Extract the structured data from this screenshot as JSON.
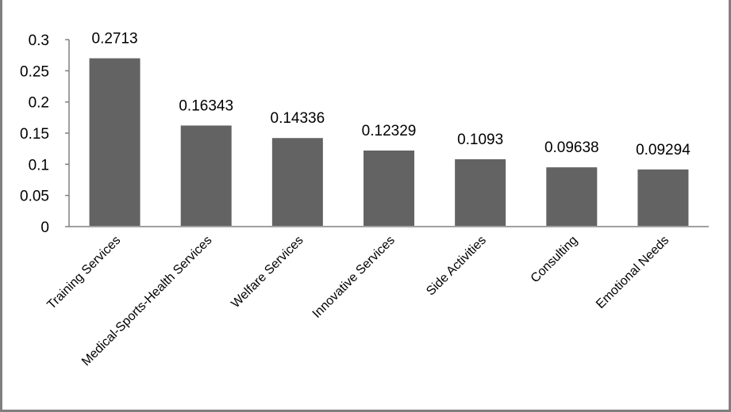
{
  "chart_data": {
    "type": "bar",
    "categories": [
      "Training Services",
      "Medical-Sports-Health Services",
      "Welfare Services",
      "Innovative Services",
      "Side Activities",
      "Consulting",
      "Emotional Needs"
    ],
    "values": [
      0.2713,
      0.16343,
      0.14336,
      0.12329,
      0.1093,
      0.09638,
      0.09294
    ],
    "data_labels": [
      "0.2713",
      "0.16343",
      "0.14336",
      "0.12329",
      "0.1093",
      "0.09638",
      "0.09294"
    ],
    "yticks": [
      "0",
      "0.05",
      "0.1",
      "0.15",
      "0.2",
      "0.25",
      "0.3"
    ],
    "ylim": [
      0,
      0.3
    ],
    "title": "",
    "xlabel": "",
    "ylabel": "",
    "grid": false,
    "legend": "none",
    "colors": {
      "bar": "#636363",
      "bar_edge": "#ffffff",
      "axis": "#808080"
    }
  }
}
